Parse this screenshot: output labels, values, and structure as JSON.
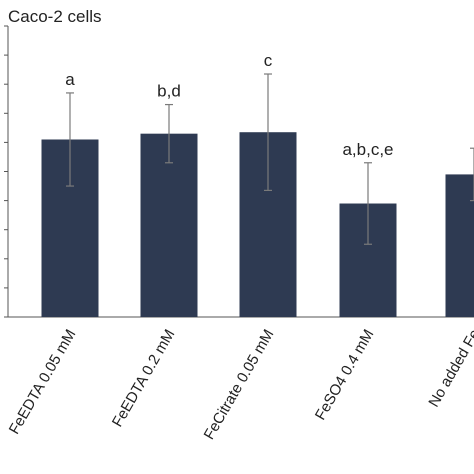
{
  "chart_data": {
    "type": "bar",
    "title": "Caco-2 cells",
    "categories": [
      "FeEDTA 0.05 mM",
      "FeEDTA 0.2 mM",
      "FeCitrate 0.05 mM",
      "FeSO4 0.4 mM",
      "No added Fe"
    ],
    "values": [
      6.1,
      6.3,
      6.35,
      3.9,
      4.9
    ],
    "error": [
      1.6,
      1.0,
      2.0,
      1.4,
      0.9
    ],
    "significance_labels": [
      "a",
      "b,d",
      "c",
      "a,b,c,e",
      ""
    ],
    "ylim": [
      0,
      10
    ],
    "xlabel": "",
    "ylabel": "",
    "bar_color": "#2e3a52",
    "error_bar_color": "#7a7a7a",
    "grid": false
  }
}
